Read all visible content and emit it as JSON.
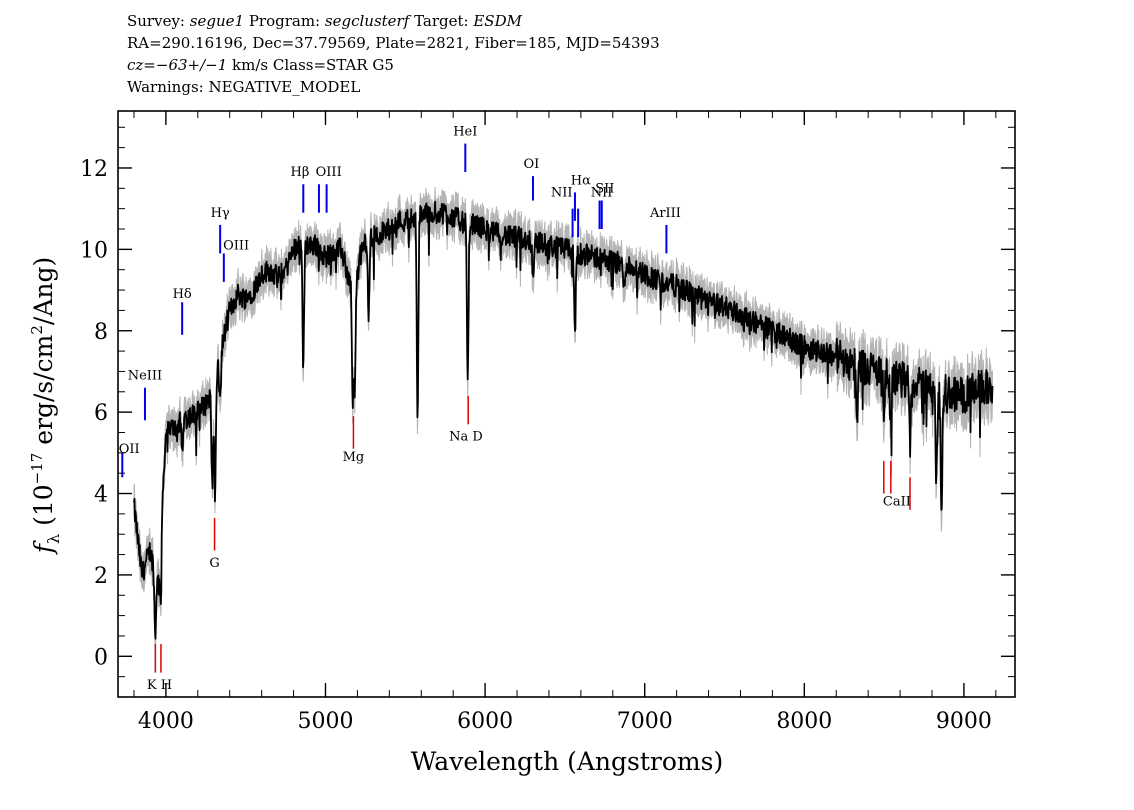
{
  "header": {
    "survey_label": "Survey:",
    "survey": "segue1",
    "program_label": "Program:",
    "program": "segclusterf",
    "target_label": "Target:",
    "target": "ESDM",
    "coords": "RA=290.16196, Dec=37.79569, Plate=2821, Fiber=185, MJD=54393",
    "cz": "cz=−63+/−1",
    "class_text": "km/s Class=STAR G5",
    "warnings": "Warnings: NEGATIVE_MODEL"
  },
  "chart_data": {
    "type": "line",
    "xlabel": "Wavelength (Angstroms)",
    "ylabel_sym": "f",
    "ylabel_sub": "λ",
    "ylabel_pre": " (10",
    "ylabel_exp": "−17",
    "ylabel_mid": " erg/s/cm",
    "ylabel_exp2": "2",
    "ylabel_post": "/Ang)",
    "xlim": [
      3700,
      9320
    ],
    "ylim": [
      -1.0,
      13.4
    ],
    "x_ticks": [
      4000,
      5000,
      6000,
      7000,
      8000,
      9000
    ],
    "y_ticks": [
      0,
      2,
      4,
      6,
      8,
      10,
      12
    ],
    "colors": {
      "flux": "#000000",
      "error": "#b4b4b4",
      "emission": "#0000ee",
      "absorption": "#e00000"
    },
    "series": [
      {
        "x": [
          3800,
          3850,
          3900,
          3950,
          4000,
          4050,
          4100,
          4150,
          4200,
          4250,
          4300,
          4350,
          4400,
          4450,
          4500,
          4550,
          4600,
          4650,
          4700,
          4750,
          4800,
          4850,
          4900,
          4950,
          5000,
          5050,
          5100,
          5150,
          5200,
          5250,
          5300,
          5350,
          5400,
          5450,
          5500,
          5550,
          5600,
          5650,
          5700,
          5750,
          5800,
          5850,
          5900,
          5950,
          6000,
          6050,
          6100,
          6150,
          6200,
          6300,
          6400,
          6500,
          6600,
          6700,
          6800,
          6900,
          7000,
          7100,
          7200,
          7300,
          7400,
          7500,
          7600,
          7700,
          7800,
          7900,
          8000,
          8100,
          8200,
          8300,
          8400,
          8500,
          8600,
          8700,
          8800,
          8900,
          9000,
          9100,
          9180
        ],
        "values": [
          3.7,
          2.0,
          2.6,
          1.8,
          5.5,
          5.6,
          5.8,
          5.9,
          6.0,
          6.2,
          6.6,
          7.6,
          8.5,
          8.9,
          8.8,
          9.0,
          9.4,
          9.5,
          9.3,
          9.5,
          10.0,
          10.2,
          10.1,
          10.1,
          9.8,
          10.0,
          10.0,
          9.2,
          9.6,
          10.2,
          10.3,
          10.4,
          10.5,
          10.7,
          10.7,
          10.8,
          10.9,
          10.9,
          10.9,
          10.9,
          10.8,
          10.7,
          10.6,
          10.6,
          10.5,
          10.4,
          10.4,
          10.3,
          10.3,
          10.2,
          10.1,
          10.0,
          9.9,
          9.8,
          9.7,
          9.6,
          9.4,
          9.2,
          9.1,
          8.9,
          8.7,
          8.6,
          8.4,
          8.2,
          8.0,
          7.8,
          7.6,
          7.5,
          7.4,
          7.2,
          7.1,
          6.9,
          6.8,
          6.7,
          6.6,
          6.5,
          6.4,
          6.6,
          6.6
        ]
      }
    ],
    "absorption_dips": [
      {
        "x": 3933,
        "v": 0.5
      },
      {
        "x": 3968,
        "v": 1.3
      },
      {
        "x": 4101,
        "v": 5.0
      },
      {
        "x": 4290,
        "v": 4.3
      },
      {
        "x": 4308,
        "v": 3.8
      },
      {
        "x": 4340,
        "v": 6.2
      },
      {
        "x": 4861,
        "v": 7.0
      },
      {
        "x": 5170,
        "v": 6.4
      },
      {
        "x": 5183,
        "v": 6.3
      },
      {
        "x": 5270,
        "v": 8.3
      },
      {
        "x": 5577,
        "v": 5.7
      },
      {
        "x": 5891,
        "v": 6.7
      },
      {
        "x": 6300,
        "v": 9.4
      },
      {
        "x": 6563,
        "v": 7.9
      },
      {
        "x": 6870,
        "v": 9.0
      },
      {
        "x": 8330,
        "v": 5.6
      },
      {
        "x": 8498,
        "v": 6.2
      },
      {
        "x": 8542,
        "v": 5.7
      },
      {
        "x": 8662,
        "v": 5.3
      },
      {
        "x": 8827,
        "v": 4.1
      },
      {
        "x": 8860,
        "v": 3.2
      }
    ],
    "emission_lines": [
      {
        "label": "OII",
        "x": 3727,
        "y0": 4.4,
        "y1": 5.0
      },
      {
        "label": "NeIII",
        "x": 3869,
        "y0": 5.8,
        "y1": 6.6
      },
      {
        "label": "Hδ",
        "x": 4102,
        "y0": 7.9,
        "y1": 8.7
      },
      {
        "label": "OIII",
        "x": 4363,
        "y0": 9.2,
        "y1": 9.9
      },
      {
        "label": "Hγ",
        "x": 4340,
        "y0": 9.9,
        "y1": 10.6
      },
      {
        "label": "Hβ",
        "x": 4861,
        "y0": 10.9,
        "y1": 11.6
      },
      {
        "label": "OIII",
        "x": 4959,
        "y0": 10.9,
        "y1": 11.6
      },
      {
        "label": "OIII",
        "x": 5007,
        "y0": 10.9,
        "y1": 11.6
      },
      {
        "label": "HeI",
        "x": 5876,
        "y0": 11.9,
        "y1": 12.6
      },
      {
        "label": "OI",
        "x": 6300,
        "y0": 11.2,
        "y1": 11.8
      },
      {
        "label": "NII",
        "x": 6548,
        "y0": 10.3,
        "y1": 11.0
      },
      {
        "label": "Hα",
        "x": 6563,
        "y0": 10.7,
        "y1": 11.4
      },
      {
        "label": "NII",
        "x": 6583,
        "y0": 10.3,
        "y1": 11.0
      },
      {
        "label": "SII",
        "x": 6717,
        "y0": 10.5,
        "y1": 11.2
      },
      {
        "label": "SII",
        "x": 6731,
        "y0": 10.5,
        "y1": 11.2
      },
      {
        "label": "ArIII",
        "x": 7136,
        "y0": 9.9,
        "y1": 10.6
      }
    ],
    "absorption_lines": [
      {
        "label": "K",
        "x": 3934,
        "y0": -0.4,
        "y1": 0.3
      },
      {
        "label": "H",
        "x": 3969,
        "y0": -0.4,
        "y1": 0.3
      },
      {
        "label": "G",
        "x": 4305,
        "y0": 2.6,
        "y1": 3.4
      },
      {
        "label": "Mg",
        "x": 5175,
        "y0": 5.1,
        "y1": 5.9
      },
      {
        "label": "Na",
        "x": 5894,
        "y0": 5.7,
        "y1": 6.4
      },
      {
        "label": "CaII",
        "x": 8498,
        "y0": 4.0,
        "y1": 4.8
      },
      {
        "label": "CaII",
        "x": 8542,
        "y0": 4.0,
        "y1": 4.8
      },
      {
        "label": "CaII",
        "x": 8662,
        "y0": 3.6,
        "y1": 4.4
      }
    ],
    "text_labels": [
      {
        "text": "OII",
        "x": 3770,
        "y": 5.0
      },
      {
        "text": "NeIII",
        "x": 3869,
        "y": 6.8
      },
      {
        "text": "Hδ",
        "x": 4102,
        "y": 8.8
      },
      {
        "text": "Hγ",
        "x": 4340,
        "y": 10.8
      },
      {
        "text": "OIII",
        "x": 4440,
        "y": 10.0
      },
      {
        "text": "Hβ",
        "x": 4840,
        "y": 11.8
      },
      {
        "text": "OIII",
        "x": 5020,
        "y": 11.8
      },
      {
        "text": "HeI",
        "x": 5876,
        "y": 12.8
      },
      {
        "text": "OI",
        "x": 6290,
        "y": 12.0
      },
      {
        "text": "NII",
        "x": 6480,
        "y": 11.3
      },
      {
        "text": "Hα",
        "x": 6600,
        "y": 11.6
      },
      {
        "text": "NII",
        "x": 6730,
        "y": 11.3
      },
      {
        "text": "SII",
        "x": 6750,
        "y": 11.4
      },
      {
        "text": "ArIII",
        "x": 7130,
        "y": 10.8
      },
      {
        "text": "K H",
        "x": 3960,
        "y": -0.8
      },
      {
        "text": "G",
        "x": 4305,
        "y": 2.2
      },
      {
        "text": "Mg",
        "x": 5175,
        "y": 4.8
      },
      {
        "text": "Na  D",
        "x": 5880,
        "y": 5.3
      },
      {
        "text": "CaII",
        "x": 8580,
        "y": 3.7
      }
    ]
  }
}
